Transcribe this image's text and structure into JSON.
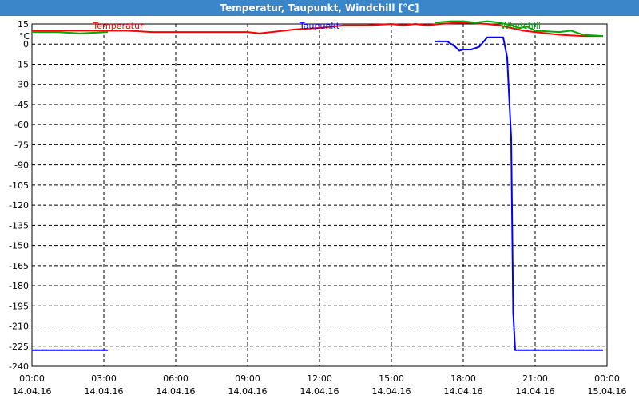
{
  "window": {
    "title": "Temperatur, Taupunkt, Windchill [°C]"
  },
  "chart_data": {
    "type": "line",
    "title": "Temperatur, Taupunkt, Windchill [°C]",
    "unit_label": "°C",
    "grid": true,
    "ylim": [
      -240,
      15
    ],
    "y_ticks": [
      15,
      0,
      -15,
      -30,
      -45,
      -60,
      -75,
      -90,
      -105,
      -120,
      -135,
      -150,
      -165,
      -180,
      -195,
      -210,
      -225,
      -240
    ],
    "xlim": [
      "2016-04-14 00:00",
      "2016-04-15 00:00"
    ],
    "x_ticks": [
      {
        "time": "00:00",
        "date": "14.04.16"
      },
      {
        "time": "03:00",
        "date": "14.04.16"
      },
      {
        "time": "06:00",
        "date": "14.04.16"
      },
      {
        "time": "09:00",
        "date": "14.04.16"
      },
      {
        "time": "12:00",
        "date": "14.04.16"
      },
      {
        "time": "15:00",
        "date": "14.04.16"
      },
      {
        "time": "18:00",
        "date": "14.04.16"
      },
      {
        "time": "21:00",
        "date": "14.04.16"
      },
      {
        "time": "00:00",
        "date": "15.04.16"
      }
    ],
    "series": [
      {
        "name": "Temperatur",
        "color": "#ff0000",
        "legend_position": "top-left",
        "points": [
          [
            "00:00",
            10
          ],
          [
            "01:00",
            10
          ],
          [
            "02:00",
            10
          ],
          [
            "03:00",
            10
          ],
          [
            "04:00",
            10
          ],
          [
            "05:00",
            9
          ],
          [
            "06:00",
            9
          ],
          [
            "07:00",
            9
          ],
          [
            "08:00",
            9
          ],
          [
            "09:00",
            9
          ],
          [
            "09:30",
            8
          ],
          [
            "10:00",
            9
          ],
          [
            "11:00",
            11
          ],
          [
            "12:00",
            12
          ],
          [
            "13:00",
            14
          ],
          [
            "14:00",
            14
          ],
          [
            "15:00",
            15
          ],
          [
            "15:30",
            14
          ],
          [
            "16:00",
            15
          ],
          [
            "16:30",
            14
          ],
          [
            "17:00",
            15
          ],
          [
            "18:00",
            16
          ],
          [
            "19:00",
            15
          ],
          [
            "19:30",
            14
          ],
          [
            "20:00",
            12
          ],
          [
            "20:30",
            10
          ],
          [
            "21:00",
            9
          ],
          [
            "22:00",
            7
          ],
          [
            "23:00",
            6
          ],
          [
            "23:50",
            6
          ]
        ]
      },
      {
        "name": "Taupunkt",
        "color": "#0000ff",
        "legend_position": "top-center",
        "segments": [
          [
            [
              "00:00",
              -228
            ],
            [
              "03:10",
              -228
            ]
          ],
          [
            [
              "16:50",
              2
            ],
            [
              "17:20",
              2
            ],
            [
              "17:40",
              -2
            ],
            [
              "17:50",
              -5
            ],
            [
              "18:00",
              -4
            ],
            [
              "18:20",
              -4
            ],
            [
              "18:40",
              -2
            ],
            [
              "19:00",
              5
            ],
            [
              "19:40",
              5
            ],
            [
              "19:50",
              -10
            ],
            [
              "20:00",
              -70
            ],
            [
              "20:05",
              -200
            ],
            [
              "20:10",
              -228
            ],
            [
              "23:50",
              -228
            ]
          ]
        ]
      },
      {
        "name": "Windchill",
        "color": "#00aa00",
        "legend_position": "top-right",
        "segments": [
          [
            [
              "00:00",
              9
            ],
            [
              "01:00",
              9
            ],
            [
              "02:00",
              8
            ],
            [
              "03:10",
              9
            ]
          ],
          [
            [
              "16:50",
              16
            ],
            [
              "17:30",
              17
            ],
            [
              "18:00",
              17
            ],
            [
              "18:30",
              16
            ],
            [
              "19:00",
              17
            ],
            [
              "19:30",
              16
            ],
            [
              "20:00",
              14
            ],
            [
              "20:20",
              12
            ],
            [
              "20:40",
              13
            ],
            [
              "21:00",
              10
            ],
            [
              "22:00",
              9
            ],
            [
              "22:30",
              10
            ],
            [
              "23:00",
              7
            ],
            [
              "23:50",
              6
            ]
          ]
        ]
      }
    ]
  }
}
